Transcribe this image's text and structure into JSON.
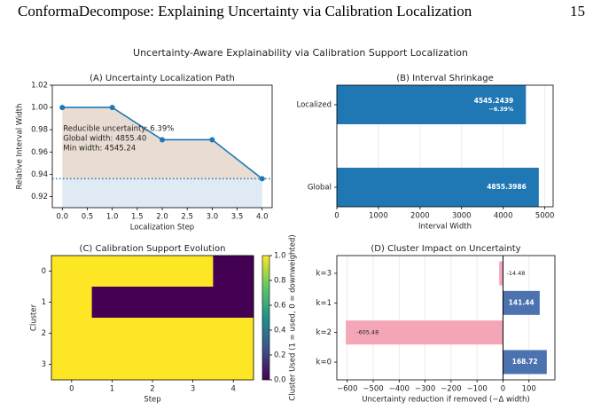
{
  "header": {
    "title": "ConformaDecompose: Explaining Uncertainty via Calibration Localization",
    "page": 15
  },
  "figure_title": "Uncertainty-Aware Explainability via Calibration Support Localization",
  "chart_data": [
    {
      "type": "line",
      "title": "(A) Uncertainty Localization Path",
      "xlabel": "Localization Step",
      "ylabel": "Relative Interval Width",
      "x": [
        0,
        1,
        2,
        3,
        4
      ],
      "values": [
        1.0,
        1.0,
        0.971,
        0.971,
        0.936
      ],
      "color": "#1f77b4",
      "xlim": [
        -0.2,
        4.2
      ],
      "ylim": [
        0.91,
        1.02
      ],
      "xticks": [
        {
          "value": 0,
          "label": "0.0"
        },
        0.5,
        {
          "value": 1,
          "label": "1.0"
        },
        1.5,
        {
          "value": 2,
          "label": "2.0"
        },
        2.5,
        {
          "value": 3,
          "label": "3.0"
        },
        3.5,
        {
          "value": 4,
          "label": "4.0"
        }
      ],
      "yticks": [
        0.92,
        0.94,
        0.96,
        0.98,
        {
          "value": 1,
          "label": "1.00"
        },
        1.02
      ],
      "annotations": [
        "Reducible uncertainty: 6.39%",
        "Global width: 4855.40",
        "Min width: 4545.24"
      ]
    },
    {
      "type": "hbar",
      "title": "(B) Interval Shrinkage",
      "xlabel": "Interval Width",
      "categories": [
        "Global",
        "Localized"
      ],
      "values": [
        4855.3986,
        4545.2439
      ],
      "change_labels": [
        null,
        "−6.39%"
      ],
      "color": "#1f77b4",
      "xlim": [
        0,
        5200
      ],
      "xticks": [
        0,
        1000,
        2000,
        3000,
        4000,
        5000
      ],
      "grid": true
    },
    {
      "type": "heatmap",
      "title": "(C) Calibration Support Evolution",
      "xlabel": "Step",
      "ylabel": "Cluster",
      "x": [
        0,
        1,
        2,
        3,
        4
      ],
      "y": [
        0,
        1,
        2,
        3
      ],
      "z": [
        [
          1,
          1,
          1,
          1,
          0
        ],
        [
          1,
          0,
          0,
          0,
          0
        ],
        [
          1,
          1,
          1,
          1,
          1
        ],
        [
          1,
          1,
          1,
          1,
          1
        ]
      ],
      "colorbar_label": "Cluster Used (1 = used, 0 = downweighted)",
      "clim": [
        0,
        1
      ],
      "cticks": [
        {
          "value": 0,
          "label": "0.0"
        },
        0.2,
        0.4,
        0.6,
        0.8,
        {
          "value": 1,
          "label": "1.0"
        }
      ],
      "colormap": [
        "#440154",
        "#3b528b",
        "#21918c",
        "#5ec962",
        "#fde725"
      ]
    },
    {
      "type": "hbar",
      "title": "(D) Cluster Impact on Uncertainty",
      "xlabel": "Uncertainty reduction if removed (−Δ width)",
      "categories": [
        "k=0",
        "k=2",
        "k=1",
        "k=3"
      ],
      "values": [
        168.72,
        -605.48,
        141.44,
        -14.48
      ],
      "colors": [
        "#4c72b0",
        "#f4a6b7",
        "#4c72b0",
        "#f4a6b7"
      ],
      "xlim": [
        -640,
        200
      ],
      "xticks": [
        {
          "value": -600,
          "label": "−600"
        },
        {
          "value": -500,
          "label": "−500"
        },
        {
          "value": -400,
          "label": "−400"
        },
        {
          "value": -300,
          "label": "−300"
        },
        {
          "value": -200,
          "label": "−200"
        },
        {
          "value": -100,
          "label": "−100"
        },
        0,
        100
      ],
      "grid": true
    }
  ]
}
